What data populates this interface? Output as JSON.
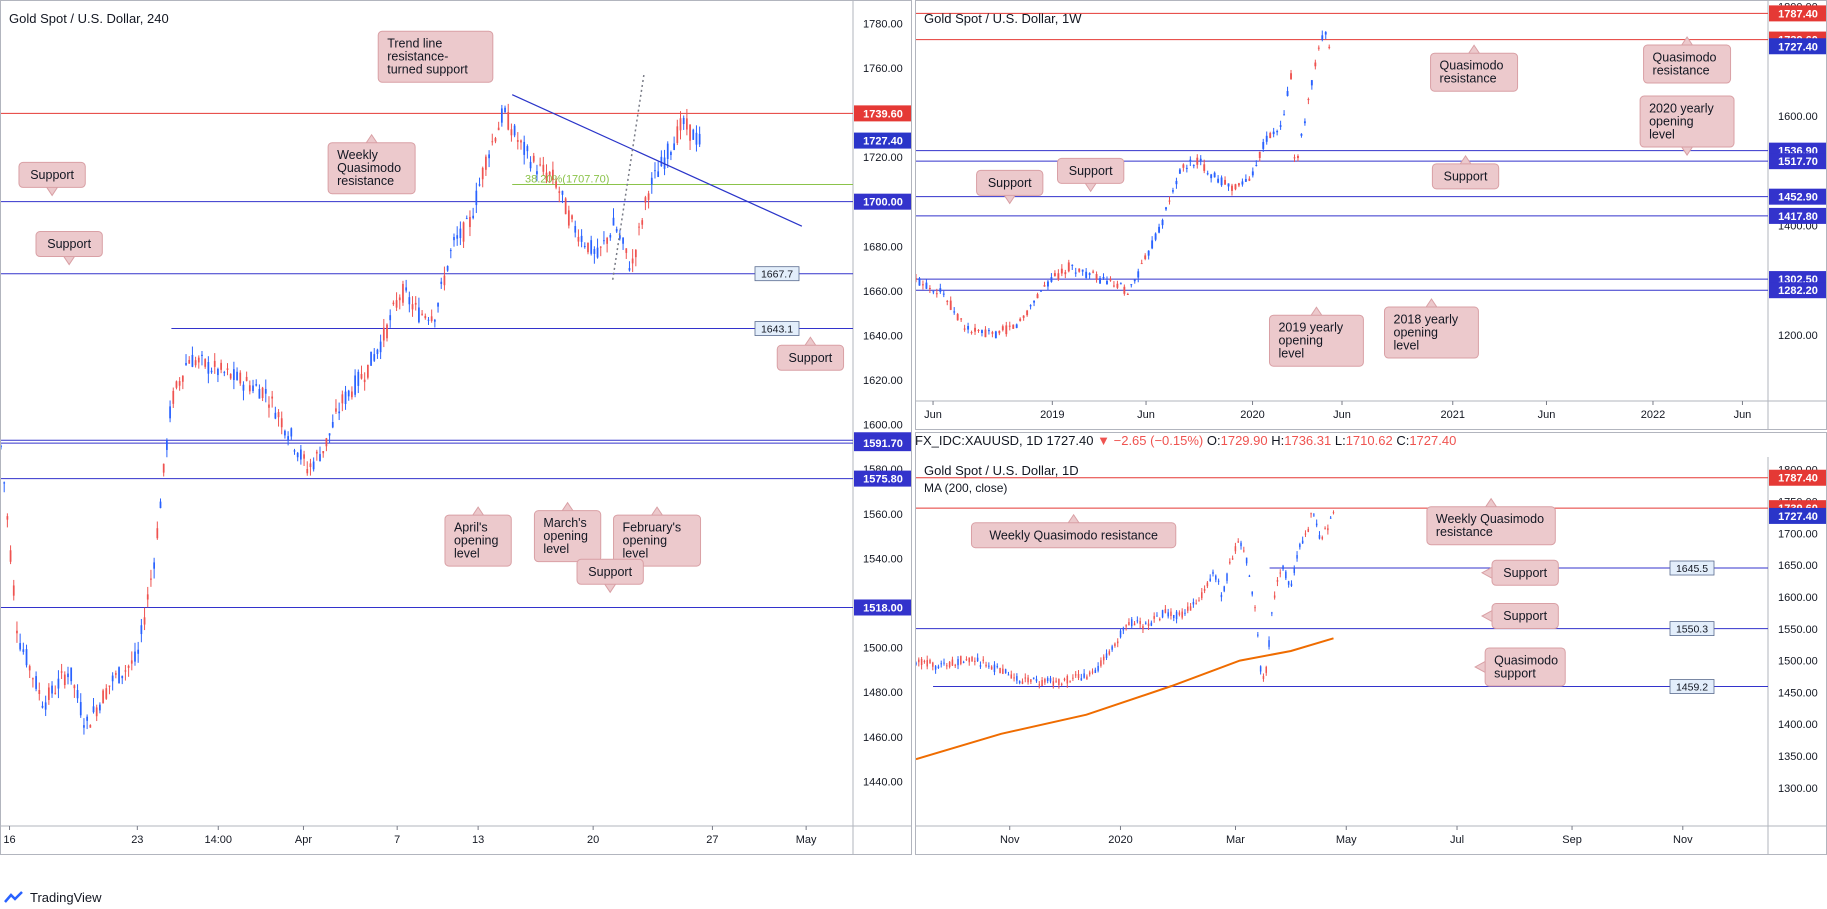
{
  "footer": {
    "brand": "TradingView"
  },
  "symbol_bar": {
    "ticker": "FX_IDC:XAUUSD, 1D",
    "last": "1727.40",
    "change": "−2.65 (−0.15%)",
    "open_label": "O:",
    "open": "1729.90",
    "high_label": "H:",
    "high": "1736.31",
    "low_label": "L:",
    "low": "1710.62",
    "close_label": "C:",
    "close": "1727.40"
  },
  "colors": {
    "up": "#2962ff",
    "down": "#ef5350",
    "support": "#3333cc",
    "resistance": "#e53935",
    "fib": "#8bc34a",
    "ma": "#ef6c00",
    "callout_fill": "#ecc9cc",
    "callout_border": "#d9a0a5",
    "trend": "#2a35c9"
  },
  "chart_data": [
    {
      "id": "panel-4h",
      "type": "candlestick",
      "title": "Gold Spot / U.S. Dollar, 240",
      "ylim": [
        1420,
        1790
      ],
      "y_ticks": [
        1440,
        1460,
        1480,
        1500,
        1520,
        1540,
        1560,
        1580,
        1600,
        1620,
        1640,
        1660,
        1680,
        1700,
        1720,
        1740,
        1760,
        1780
      ],
      "x_ticks": [
        {
          "label": "16",
          "t": 0.01
        },
        {
          "label": "23",
          "t": 0.16
        },
        {
          "label": "14:00",
          "t": 0.255
        },
        {
          "label": "Apr",
          "t": 0.355
        },
        {
          "label": "7",
          "t": 0.465
        },
        {
          "label": "13",
          "t": 0.56
        },
        {
          "label": "20",
          "t": 0.695
        },
        {
          "label": "27",
          "t": 0.835
        },
        {
          "label": "May",
          "t": 0.945
        }
      ],
      "path": [
        [
          0.0,
          1590
        ],
        [
          0.02,
          1505
        ],
        [
          0.05,
          1475
        ],
        [
          0.08,
          1490
        ],
        [
          0.1,
          1465
        ],
        [
          0.13,
          1485
        ],
        [
          0.16,
          1495
        ],
        [
          0.18,
          1540
        ],
        [
          0.2,
          1610
        ],
        [
          0.22,
          1630
        ],
        [
          0.25,
          1625
        ],
        [
          0.28,
          1620
        ],
        [
          0.31,
          1615
        ],
        [
          0.34,
          1595
        ],
        [
          0.36,
          1580
        ],
        [
          0.38,
          1590
        ],
        [
          0.4,
          1610
        ],
        [
          0.43,
          1625
        ],
        [
          0.45,
          1640
        ],
        [
          0.47,
          1660
        ],
        [
          0.49,
          1650
        ],
        [
          0.51,
          1650
        ],
        [
          0.53,
          1680
        ],
        [
          0.55,
          1690
        ],
        [
          0.57,
          1720
        ],
        [
          0.59,
          1740
        ],
        [
          0.61,
          1725
        ],
        [
          0.63,
          1715
        ],
        [
          0.65,
          1710
        ],
        [
          0.67,
          1690
        ],
        [
          0.7,
          1675
        ],
        [
          0.72,
          1690
        ],
        [
          0.74,
          1670
        ],
        [
          0.76,
          1705
        ],
        [
          0.78,
          1720
        ],
        [
          0.8,
          1735
        ],
        [
          0.82,
          1727
        ]
      ],
      "levels": [
        {
          "value": 1739.6,
          "label": "1739.60",
          "kind": "resistance",
          "x_start": 0.0
        },
        {
          "value": 1727.4,
          "label": "1727.40",
          "kind": "current",
          "x_start": 1.0
        },
        {
          "value": 1707.7,
          "label": "",
          "kind": "fib",
          "x_start": 0.6
        },
        {
          "value": 1700.0,
          "label": "1700.00",
          "kind": "support",
          "x_start": 0.0
        },
        {
          "value": 1667.7,
          "label": "1667.7",
          "kind": "minor",
          "x_start": 0.0
        },
        {
          "value": 1643.1,
          "label": "1643.1",
          "kind": "minor",
          "x_start": 0.2
        },
        {
          "value": 1593.0,
          "label": "1593.00",
          "kind": "support",
          "x_start": 0.0
        },
        {
          "value": 1591.7,
          "label": "1591.70",
          "kind": "support",
          "x_start": 0.0
        },
        {
          "value": 1575.8,
          "label": "1575.80",
          "kind": "support",
          "x_start": 0.0
        },
        {
          "value": 1518.0,
          "label": "1518.00",
          "kind": "support",
          "x_start": 0.0
        }
      ],
      "fib_label": "38.20%(1707.70)",
      "trendline": [
        [
          0.6,
          1748
        ],
        [
          0.94,
          1689
        ]
      ],
      "dotted_line": [
        [
          0.718,
          1665
        ],
        [
          0.755,
          1758
        ]
      ],
      "annotations": [
        {
          "text": [
            "Support"
          ],
          "x": 0.06,
          "y": 1712,
          "pointer": "down"
        },
        {
          "text": [
            "Support"
          ],
          "x": 0.08,
          "y": 1681,
          "pointer": "down"
        },
        {
          "text": [
            "Weekly",
            "Quasimodo",
            "resistance"
          ],
          "x": 0.435,
          "y": 1715,
          "pointer": "up"
        },
        {
          "text": [
            "Trend line",
            "resistance-",
            "turned support"
          ],
          "x": 0.51,
          "y": 1765,
          "pointer": "none"
        },
        {
          "text": [
            "Support"
          ],
          "x": 0.95,
          "y": 1630,
          "pointer": "up"
        },
        {
          "text": [
            "April's",
            "opening",
            "level"
          ],
          "x": 0.56,
          "y": 1548,
          "pointer": "up"
        },
        {
          "text": [
            "March's",
            "opening",
            "level"
          ],
          "x": 0.665,
          "y": 1550,
          "pointer": "up"
        },
        {
          "text": [
            "February's",
            "opening",
            "level"
          ],
          "x": 0.77,
          "y": 1548,
          "pointer": "up"
        },
        {
          "text": [
            "Support"
          ],
          "x": 0.715,
          "y": 1534,
          "pointer": "down"
        }
      ]
    },
    {
      "id": "panel-1w",
      "type": "candlestick",
      "title": "Gold Spot / U.S. Dollar, 1W",
      "ylim": [
        1080,
        1810
      ],
      "y_ticks": [
        1200,
        1400,
        1600,
        1800
      ],
      "x_ticks": [
        {
          "label": "Jun",
          "t": 0.02
        },
        {
          "label": "2019",
          "t": 0.16
        },
        {
          "label": "Jun",
          "t": 0.27
        },
        {
          "label": "2020",
          "t": 0.395
        },
        {
          "label": "Jun",
          "t": 0.5
        },
        {
          "label": "2021",
          "t": 0.63
        },
        {
          "label": "Jun",
          "t": 0.74
        },
        {
          "label": "2022",
          "t": 0.865
        },
        {
          "label": "Jun",
          "t": 0.97
        }
      ],
      "path": [
        [
          0.0,
          1300
        ],
        [
          0.03,
          1280
        ],
        [
          0.06,
          1210
        ],
        [
          0.09,
          1200
        ],
        [
          0.12,
          1220
        ],
        [
          0.15,
          1290
        ],
        [
          0.18,
          1325
        ],
        [
          0.22,
          1300
        ],
        [
          0.25,
          1280
        ],
        [
          0.27,
          1340
        ],
        [
          0.29,
          1410
        ],
        [
          0.31,
          1500
        ],
        [
          0.33,
          1520
        ],
        [
          0.35,
          1490
        ],
        [
          0.37,
          1470
        ],
        [
          0.39,
          1480
        ],
        [
          0.41,
          1555
        ],
        [
          0.43,
          1580
        ],
        [
          0.44,
          1680
        ],
        [
          0.445,
          1500
        ],
        [
          0.46,
          1620
        ],
        [
          0.47,
          1700
        ],
        [
          0.48,
          1760
        ],
        [
          0.485,
          1727
        ]
      ],
      "levels": [
        {
          "value": 1787.4,
          "label": "1787.40",
          "kind": "resistance",
          "x_start": 0.0
        },
        {
          "value": 1739.6,
          "label": "1739.60",
          "kind": "resistance",
          "x_start": 0.0
        },
        {
          "value": 1727.4,
          "label": "1727.40",
          "kind": "current",
          "x_start": 1.0
        },
        {
          "value": 1536.9,
          "label": "1536.90",
          "kind": "support",
          "x_start": 0.0
        },
        {
          "value": 1517.7,
          "label": "1517.70",
          "kind": "support",
          "x_start": 0.0
        },
        {
          "value": 1452.9,
          "label": "1452.90",
          "kind": "support",
          "x_start": 0.0
        },
        {
          "value": 1417.8,
          "label": "1417.80",
          "kind": "support",
          "x_start": 0.0
        },
        {
          "value": 1302.5,
          "label": "1302.50",
          "kind": "support",
          "x_start": 0.0
        },
        {
          "value": 1282.2,
          "label": "1282.20",
          "kind": "support",
          "x_start": 0.0
        }
      ],
      "annotations": [
        {
          "text": [
            "Quasimodo",
            "resistance"
          ],
          "x": 0.655,
          "y": 1680,
          "pointer": "up"
        },
        {
          "text": [
            "Quasimodo",
            "resistance"
          ],
          "x": 0.905,
          "y": 1695,
          "pointer": "up"
        },
        {
          "text": [
            "2020 yearly",
            "opening",
            "level"
          ],
          "x": 0.905,
          "y": 1590,
          "pointer": "down"
        },
        {
          "text": [
            "Support"
          ],
          "x": 0.645,
          "y": 1490,
          "pointer": "up"
        },
        {
          "text": [
            "Support"
          ],
          "x": 0.11,
          "y": 1478,
          "pointer": "down"
        },
        {
          "text": [
            "Support"
          ],
          "x": 0.205,
          "y": 1500,
          "pointer": "down"
        },
        {
          "text": [
            "2019 yearly",
            "opening",
            "level"
          ],
          "x": 0.47,
          "y": 1190,
          "pointer": "up"
        },
        {
          "text": [
            "2018 yearly",
            "opening",
            "level"
          ],
          "x": 0.605,
          "y": 1205,
          "pointer": "up"
        }
      ]
    },
    {
      "id": "panel-1d",
      "type": "candlestick",
      "title": "Gold Spot / U.S. Dollar, 1D",
      "subtitle": "MA (200, close)",
      "ylim": [
        1240,
        1820
      ],
      "y_ticks": [
        1300,
        1350,
        1400,
        1450,
        1500,
        1550,
        1600,
        1650,
        1700,
        1750,
        1800
      ],
      "x_ticks": [
        {
          "label": "Nov",
          "t": 0.11
        },
        {
          "label": "2020",
          "t": 0.24
        },
        {
          "label": "Mar",
          "t": 0.375
        },
        {
          "label": "May",
          "t": 0.505
        },
        {
          "label": "Jul",
          "t": 0.635
        },
        {
          "label": "Sep",
          "t": 0.77
        },
        {
          "label": "Nov",
          "t": 0.9
        }
      ],
      "path": [
        [
          0.0,
          1500
        ],
        [
          0.03,
          1490
        ],
        [
          0.06,
          1505
        ],
        [
          0.09,
          1490
        ],
        [
          0.12,
          1470
        ],
        [
          0.15,
          1465
        ],
        [
          0.18,
          1470
        ],
        [
          0.21,
          1480
        ],
        [
          0.23,
          1520
        ],
        [
          0.25,
          1560
        ],
        [
          0.27,
          1555
        ],
        [
          0.29,
          1575
        ],
        [
          0.31,
          1570
        ],
        [
          0.33,
          1590
        ],
        [
          0.35,
          1640
        ],
        [
          0.36,
          1600
        ],
        [
          0.37,
          1660
        ],
        [
          0.38,
          1690
        ],
        [
          0.39,
          1650
        ],
        [
          0.4,
          1560
        ],
        [
          0.405,
          1480
        ],
        [
          0.41,
          1470
        ],
        [
          0.42,
          1600
        ],
        [
          0.43,
          1650
        ],
        [
          0.44,
          1615
        ],
        [
          0.45,
          1680
        ],
        [
          0.46,
          1700
        ],
        [
          0.465,
          1740
        ],
        [
          0.475,
          1690
        ],
        [
          0.49,
          1727
        ]
      ],
      "ma200": [
        [
          0.0,
          1345
        ],
        [
          0.1,
          1385
        ],
        [
          0.2,
          1415
        ],
        [
          0.3,
          1460
        ],
        [
          0.38,
          1500
        ],
        [
          0.44,
          1515
        ],
        [
          0.49,
          1535
        ]
      ],
      "levels": [
        {
          "value": 1787.4,
          "label": "1787.40",
          "kind": "resistance",
          "x_start": 0.0
        },
        {
          "value": 1739.6,
          "label": "1739.60",
          "kind": "resistance",
          "x_start": 0.0
        },
        {
          "value": 1727.4,
          "label": "1727.40",
          "kind": "current",
          "x_start": 1.0
        },
        {
          "value": 1645.5,
          "label": "1645.5",
          "kind": "minor",
          "x_start": 0.415
        },
        {
          "value": 1550.3,
          "label": "1550.3",
          "kind": "minor",
          "x_start": 0.0
        },
        {
          "value": 1459.2,
          "label": "1459.2",
          "kind": "minor",
          "x_start": 0.02
        }
      ],
      "annotations": [
        {
          "text": [
            "Weekly Quasimodo resistance"
          ],
          "x": 0.185,
          "y": 1697,
          "pointer": "up"
        },
        {
          "text": [
            "Weekly Quasimodo",
            "resistance"
          ],
          "x": 0.675,
          "y": 1712,
          "pointer": "up"
        },
        {
          "text": [
            "Support"
          ],
          "x": 0.715,
          "y": 1638,
          "pointer": "left"
        },
        {
          "text": [
            "Support"
          ],
          "x": 0.715,
          "y": 1570,
          "pointer": "left"
        },
        {
          "text": [
            "Quasimodo",
            "support"
          ],
          "x": 0.715,
          "y": 1490,
          "pointer": "left"
        }
      ]
    }
  ]
}
